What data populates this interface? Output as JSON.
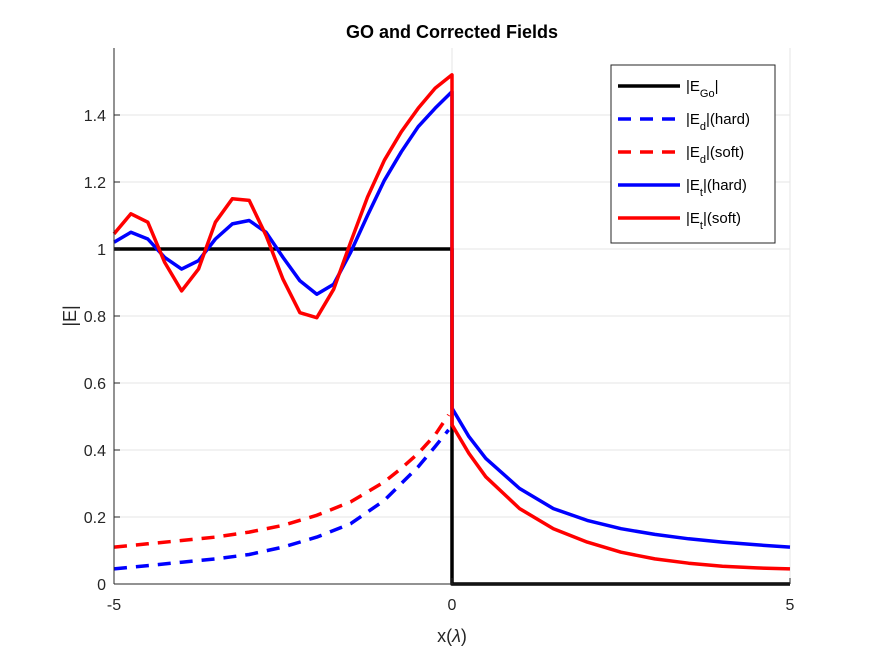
{
  "chart_data": {
    "type": "line",
    "title": "GO and Corrected Fields",
    "xlabel": "x(λ)",
    "xlabel_parts": {
      "main": "x(",
      "greek": "λ",
      "close": ")"
    },
    "ylabel": "|E|",
    "xlim": [
      -5,
      5
    ],
    "ylim": [
      0,
      1.6
    ],
    "xticks": [
      -5,
      0,
      5
    ],
    "xtick_labels": [
      "-5",
      "0",
      "5"
    ],
    "yticks": [
      0,
      0.2,
      0.4,
      0.6,
      0.8,
      1,
      1.2,
      1.4
    ],
    "ytick_labels": [
      "0",
      "0.2",
      "0.4",
      "0.6",
      "0.8",
      "1",
      "1.2",
      "1.4"
    ],
    "grid": true,
    "legend_position": "top-right",
    "series": [
      {
        "name": "|E_Go|",
        "legend": {
          "pre": "|E",
          "sub": "Go",
          "post": "|"
        },
        "color": "#000000",
        "dash": "solid",
        "x": [
          -5,
          -0.01,
          0,
          0,
          0.01,
          5
        ],
        "y": [
          1,
          1,
          1,
          0,
          0,
          0
        ]
      },
      {
        "name": "|E_d|(hard)",
        "legend": {
          "pre": "|E",
          "sub": "d",
          "post": "|(hard)"
        },
        "color": "#0000ff",
        "dash": "dashed",
        "x": [
          -5,
          -4.5,
          -4,
          -3.5,
          -3,
          -2.5,
          -2,
          -1.5,
          -1,
          -0.75,
          -0.5,
          -0.25,
          -0.05
        ],
        "y": [
          0.045,
          0.055,
          0.065,
          0.075,
          0.088,
          0.11,
          0.14,
          0.18,
          0.25,
          0.3,
          0.35,
          0.41,
          0.46
        ]
      },
      {
        "name": "|E_d|(soft)",
        "legend": {
          "pre": "|E",
          "sub": "d",
          "post": "|(soft)"
        },
        "color": "#ff0000",
        "dash": "dashed",
        "x": [
          -5,
          -4.5,
          -4,
          -3.5,
          -3,
          -2.5,
          -2,
          -1.5,
          -1,
          -0.75,
          -0.5,
          -0.25,
          -0.05
        ],
        "y": [
          0.11,
          0.12,
          0.13,
          0.14,
          0.155,
          0.175,
          0.205,
          0.245,
          0.305,
          0.345,
          0.39,
          0.445,
          0.505
        ]
      },
      {
        "name": "|E_t|(hard)",
        "legend": {
          "pre": "|E",
          "sub": "t",
          "post": "|(hard)"
        },
        "color": "#0000ff",
        "dash": "solid",
        "x": [
          -5,
          -4.75,
          -4.5,
          -4.25,
          -4,
          -3.75,
          -3.5,
          -3.25,
          -3,
          -2.75,
          -2.5,
          -2.25,
          -2,
          -1.75,
          -1.5,
          -1.25,
          -1,
          -0.75,
          -0.5,
          -0.25,
          0,
          0,
          0.25,
          0.5,
          1,
          1.5,
          2,
          2.5,
          3,
          3.5,
          4,
          4.5,
          5
        ],
        "y": [
          1.02,
          1.05,
          1.03,
          0.975,
          0.94,
          0.965,
          1.03,
          1.075,
          1.085,
          1.05,
          0.975,
          0.905,
          0.865,
          0.895,
          0.99,
          1.1,
          1.205,
          1.29,
          1.365,
          1.42,
          1.47,
          0.525,
          0.44,
          0.375,
          0.285,
          0.225,
          0.19,
          0.165,
          0.148,
          0.135,
          0.125,
          0.117,
          0.11
        ]
      },
      {
        "name": "|E_t|(soft)",
        "legend": {
          "pre": "|E",
          "sub": "t",
          "post": "|(soft)"
        },
        "color": "#ff0000",
        "dash": "solid",
        "x": [
          -5,
          -4.75,
          -4.5,
          -4.25,
          -4,
          -3.75,
          -3.5,
          -3.25,
          -3,
          -2.75,
          -2.5,
          -2.25,
          -2,
          -1.75,
          -1.5,
          -1.25,
          -1,
          -0.75,
          -0.5,
          -0.25,
          0,
          0,
          0.25,
          0.5,
          1,
          1.5,
          2,
          2.5,
          3,
          3.5,
          4,
          4.5,
          5
        ],
        "y": [
          1.045,
          1.105,
          1.08,
          0.96,
          0.875,
          0.94,
          1.08,
          1.15,
          1.145,
          1.04,
          0.91,
          0.81,
          0.795,
          0.88,
          1.02,
          1.155,
          1.265,
          1.35,
          1.42,
          1.48,
          1.52,
          0.475,
          0.39,
          0.32,
          0.225,
          0.165,
          0.125,
          0.095,
          0.075,
          0.062,
          0.053,
          0.048,
          0.045
        ]
      }
    ]
  }
}
